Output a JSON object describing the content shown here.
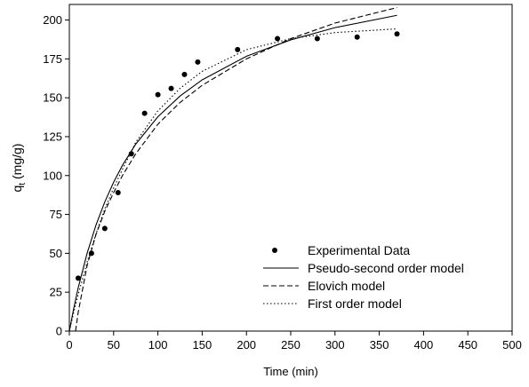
{
  "chart_data": {
    "type": "scatter",
    "xlabel": "Time (min)",
    "ylabel": {
      "main": "q",
      "sub": "t",
      "unit": " (mg/g)"
    },
    "xlim": [
      0,
      500
    ],
    "xticks": [
      0,
      50,
      100,
      150,
      200,
      250,
      300,
      350,
      400,
      450,
      500
    ],
    "ylim": [
      0,
      210
    ],
    "yticks": [
      0,
      25,
      50,
      75,
      100,
      125,
      150,
      175,
      200
    ],
    "grid": false,
    "legend": "lower right",
    "series": [
      {
        "name": "Experimental Data",
        "type": "scatter",
        "color": "#000000",
        "x": [
          10,
          25,
          40,
          55,
          70,
          85,
          100,
          115,
          130,
          145,
          190,
          235,
          280,
          325,
          370
        ],
        "values": [
          34,
          50,
          66,
          89,
          114,
          140,
          152,
          156,
          165,
          173,
          181,
          188,
          188,
          189,
          191
        ]
      },
      {
        "name": "Pseudo-second order model",
        "type": "line",
        "dash": "solid",
        "color": "#000000",
        "x": [
          0,
          5,
          10,
          20,
          30,
          40,
          50,
          60,
          75,
          100,
          125,
          150,
          200,
          250,
          300,
          370
        ],
        "values": [
          0,
          14.7,
          27.8,
          49.9,
          68.0,
          83.0,
          95.7,
          106.6,
          120.2,
          137.8,
          151.1,
          161.5,
          176.7,
          187.2,
          195.1,
          203.0
        ]
      },
      {
        "name": "Elovich model",
        "type": "line",
        "dash": "dashed",
        "color": "#000000",
        "x": [
          7,
          10,
          20,
          30,
          40,
          50,
          60,
          75,
          100,
          125,
          150,
          200,
          250,
          300,
          370
        ],
        "values": [
          0,
          12,
          42,
          62,
          77,
          89,
          100,
          114,
          133,
          147,
          158,
          175,
          188,
          198,
          208
        ]
      },
      {
        "name": "First order model",
        "type": "line",
        "dash": "dotted",
        "color": "#000000",
        "x": [
          0,
          5,
          10,
          20,
          30,
          40,
          50,
          60,
          75,
          100,
          125,
          150,
          200,
          250,
          300,
          370
        ],
        "values": [
          0,
          12.2,
          23.5,
          44.2,
          62.4,
          78.5,
          92.0,
          104.0,
          121.4,
          141.6,
          156.0,
          167.0,
          180.9,
          188.0,
          191.9,
          194.3
        ]
      }
    ]
  }
}
